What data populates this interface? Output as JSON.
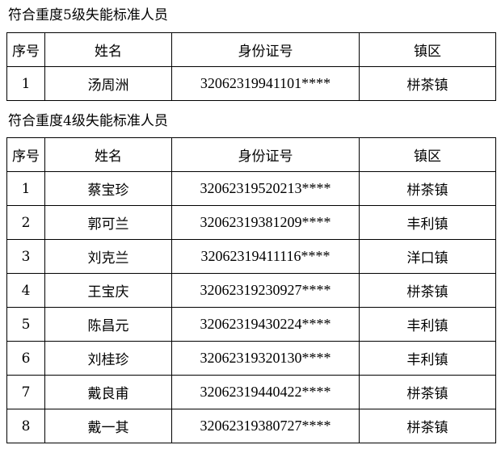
{
  "sections": [
    {
      "title": "符合重度5级失能标准人员",
      "headers": [
        "序号",
        "姓名",
        "身份证号",
        "镇区"
      ],
      "rows": [
        [
          "1",
          "汤周洲",
          "32062319941101****",
          "栟茶镇"
        ]
      ]
    },
    {
      "title": "符合重度4级失能标准人员",
      "headers": [
        "序号",
        "姓名",
        "身份证号",
        "镇区"
      ],
      "rows": [
        [
          "1",
          "蔡宝珍",
          "32062319520213****",
          "栟茶镇"
        ],
        [
          "2",
          "郭可兰",
          "32062319381209****",
          "丰利镇"
        ],
        [
          "3",
          "刘克兰",
          "32062319411116****",
          "洋口镇"
        ],
        [
          "4",
          "王宝庆",
          "32062319230927****",
          "栟茶镇"
        ],
        [
          "5",
          "陈昌元",
          "32062319430224****",
          "丰利镇"
        ],
        [
          "6",
          "刘桂珍",
          "32062319320130****",
          "丰利镇"
        ],
        [
          "7",
          "戴良甫",
          "32062319440422****",
          "栟茶镇"
        ],
        [
          "8",
          "戴一其",
          "32062319380727****",
          "栟茶镇"
        ]
      ]
    }
  ]
}
